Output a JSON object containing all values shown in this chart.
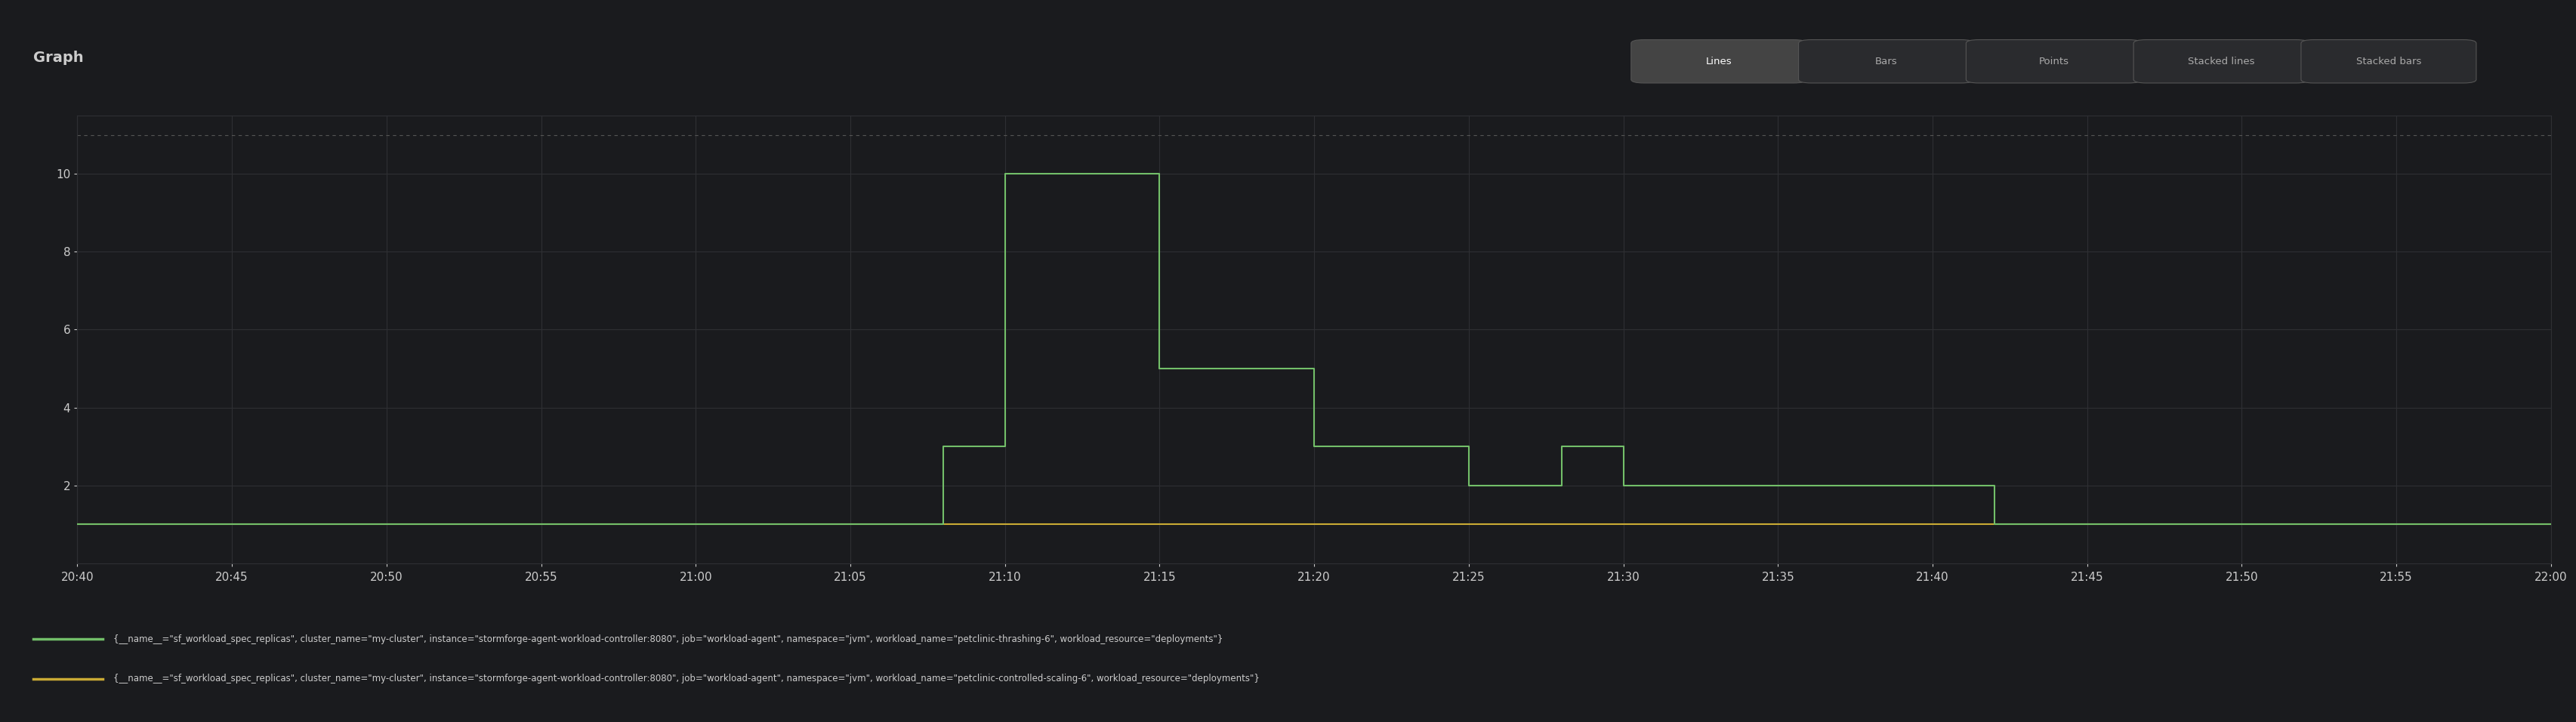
{
  "title": "Graph",
  "background_color": "#1a1b1e",
  "plot_bg_color": "#1a1b1e",
  "grid_color": "#2e2f33",
  "dashed_line_color": "#555555",
  "text_color": "#cccccc",
  "axis_label_color": "#aaaaaa",
  "ylim": [
    0,
    11.5
  ],
  "yticks": [
    2,
    4,
    6,
    8,
    10
  ],
  "dashed_y": 11.0,
  "x_start_min": 0,
  "x_end_min": 80,
  "xtick_labels": [
    "20:40",
    "20:45",
    "20:50",
    "20:55",
    "21:00",
    "21:05",
    "21:10",
    "21:15",
    "21:20",
    "21:25",
    "21:30",
    "21:35",
    "21:40",
    "21:45",
    "21:50",
    "21:55",
    "22:00"
  ],
  "xtick_positions": [
    0,
    5,
    10,
    15,
    20,
    25,
    30,
    35,
    40,
    45,
    50,
    55,
    60,
    65,
    70,
    75,
    80
  ],
  "green_line_color": "#73bf69",
  "yellow_line_color": "#caab35",
  "green_x": [
    0,
    28,
    28,
    30,
    30,
    35,
    35,
    40,
    40,
    45,
    45,
    48,
    48,
    50,
    50,
    55,
    55,
    60,
    60,
    62,
    62,
    80
  ],
  "green_y": [
    1,
    1,
    3,
    3,
    10,
    10,
    5,
    5,
    3,
    3,
    2,
    2,
    3,
    3,
    2,
    2,
    2,
    2,
    2,
    2,
    1,
    1
  ],
  "yellow_x": [
    0,
    80
  ],
  "yellow_y": [
    1,
    1
  ],
  "legend_green_label": "{__name__=\"sf_workload_spec_replicas\", cluster_name=\"my-cluster\", instance=\"stormforge-agent-workload-controller:8080\", job=\"workload-agent\", namespace=\"jvm\", workload_name=\"petclinic-thrashing-6\", workload_resource=\"deployments\"}",
  "legend_yellow_label": "{__name__=\"sf_workload_spec_replicas\", cluster_name=\"my-cluster\", instance=\"stormforge-agent-workload-controller:8080\", job=\"workload-agent\", namespace=\"jvm\", workload_name=\"petclinic-controlled-scaling-6\", workload_resource=\"deployments\"}",
  "button_labels": [
    "Lines",
    "Bars",
    "Points",
    "Stacked lines",
    "Stacked bars"
  ],
  "active_button": "Lines",
  "linewidth": 1.5
}
